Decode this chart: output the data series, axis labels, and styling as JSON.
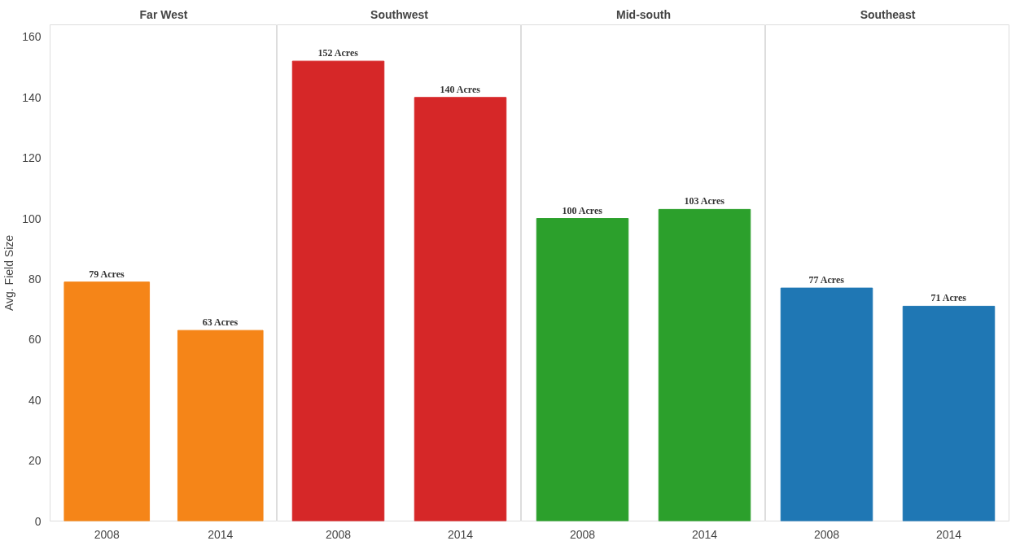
{
  "chart_data": [
    {
      "type": "bar",
      "title": "Far West",
      "ylabel": "Avg. Field Size",
      "categories": [
        "2008",
        "2014"
      ],
      "values": [
        79,
        63
      ],
      "color": "#f58518",
      "value_labels": [
        "79 Acres",
        "63 Acres"
      ],
      "ylim": [
        0,
        164
      ],
      "yticks": [
        0,
        20,
        40,
        60,
        80,
        100,
        120,
        140,
        160
      ]
    },
    {
      "type": "bar",
      "title": "Southwest",
      "categories": [
        "2008",
        "2014"
      ],
      "values": [
        152,
        140
      ],
      "color": "#d62728",
      "value_labels": [
        "152 Acres",
        "140 Acres"
      ],
      "ylim": [
        0,
        164
      ],
      "tick_labels": "x"
    },
    {
      "type": "bar",
      "title": "Mid-south",
      "categories": [
        "2008",
        "2014"
      ],
      "values": [
        100,
        103
      ],
      "color": "#2ca02c",
      "value_labels": [
        "100 Acres",
        "103 Acres"
      ],
      "ylim": [
        0,
        164
      ],
      "tick_labels": "x"
    },
    {
      "type": "bar",
      "title": "Southeast",
      "categories": [
        "2008",
        "2014"
      ],
      "values": [
        77,
        71
      ],
      "color": "#1f77b4",
      "value_labels": [
        "77 Acres",
        "71 Acres"
      ],
      "ylim": [
        0,
        164
      ],
      "tick_labels": "x"
    }
  ]
}
